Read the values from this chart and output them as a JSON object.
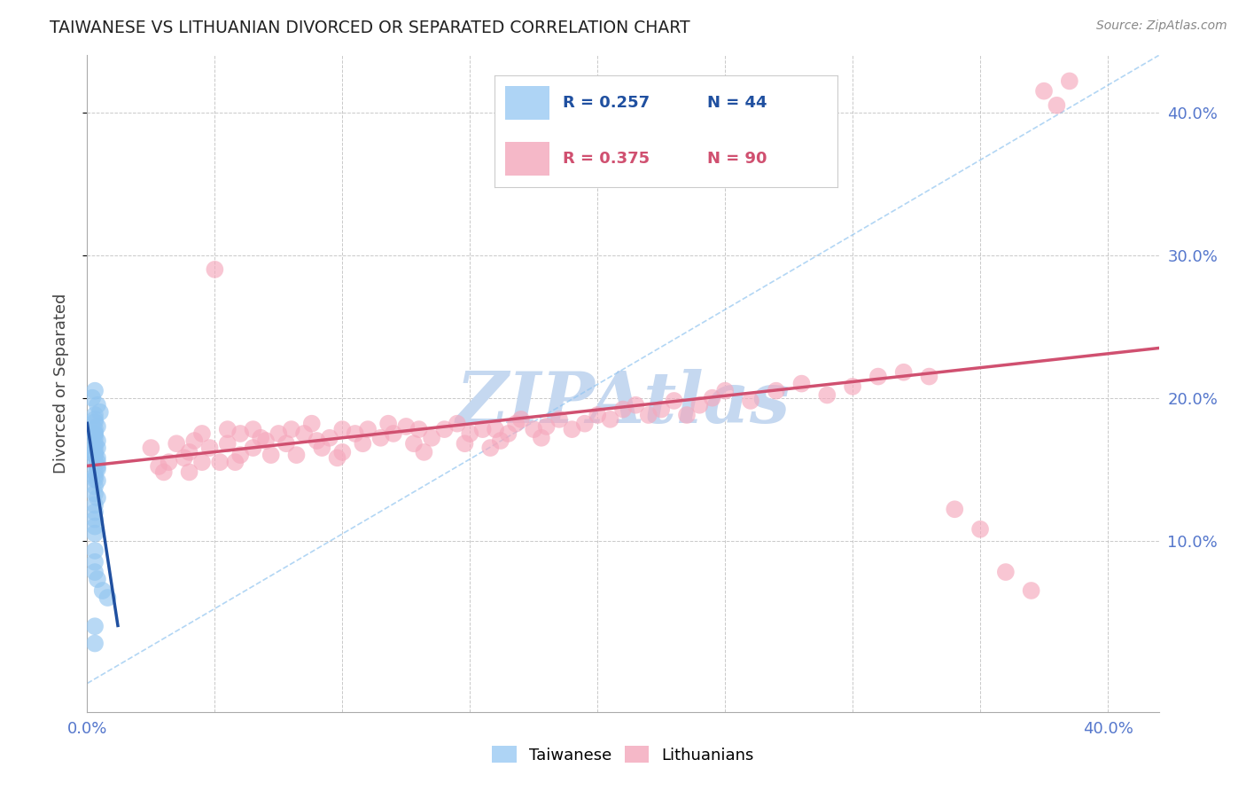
{
  "title": "TAIWANESE VS LITHUANIAN DIVORCED OR SEPARATED CORRELATION CHART",
  "source": "Source: ZipAtlas.com",
  "ylabel": "Divorced or Separated",
  "xlim": [
    0.0,
    0.42
  ],
  "ylim": [
    -0.02,
    0.44
  ],
  "x_ticks": [
    0.0,
    0.05,
    0.1,
    0.15,
    0.2,
    0.25,
    0.3,
    0.35,
    0.4
  ],
  "y_ticks": [
    0.1,
    0.2,
    0.3,
    0.4
  ],
  "legend_r1": "0.257",
  "legend_n1": "44",
  "legend_r2": "0.375",
  "legend_n2": "90",
  "legend_label1": "Taiwanese",
  "legend_label2": "Lithuanians",
  "blue_scatter_color": "#92C5F0",
  "pink_scatter_color": "#F5A8BC",
  "blue_line_color": "#2050A0",
  "pink_line_color": "#D05070",
  "blue_dash_color": "#92C5F0",
  "watermark": "ZIPAtlas",
  "watermark_color": "#C5D8F0",
  "background_color": "#FFFFFF",
  "grid_color": "#BBBBBB",
  "title_color": "#222222",
  "source_color": "#888888",
  "tick_color": "#5577CC",
  "tw_x": [
    0.002,
    0.003,
    0.003,
    0.004,
    0.004,
    0.005,
    0.003,
    0.004,
    0.003,
    0.004,
    0.003,
    0.003,
    0.004,
    0.003,
    0.004,
    0.003,
    0.003,
    0.003,
    0.003,
    0.003,
    0.003,
    0.003,
    0.003,
    0.004,
    0.004,
    0.003,
    0.003,
    0.004,
    0.003,
    0.003,
    0.004,
    0.003,
    0.003,
    0.003,
    0.003,
    0.003,
    0.003,
    0.003,
    0.003,
    0.004,
    0.006,
    0.008,
    0.003,
    0.003
  ],
  "tw_y": [
    0.2,
    0.205,
    0.185,
    0.195,
    0.18,
    0.19,
    0.175,
    0.17,
    0.168,
    0.165,
    0.16,
    0.162,
    0.158,
    0.155,
    0.152,
    0.175,
    0.178,
    0.183,
    0.188,
    0.172,
    0.148,
    0.145,
    0.143,
    0.15,
    0.155,
    0.16,
    0.165,
    0.142,
    0.138,
    0.133,
    0.13,
    0.125,
    0.12,
    0.115,
    0.11,
    0.105,
    0.093,
    0.085,
    0.078,
    0.073,
    0.065,
    0.06,
    0.04,
    0.028
  ],
  "lt_x": [
    0.025,
    0.028,
    0.03,
    0.032,
    0.035,
    0.038,
    0.04,
    0.04,
    0.042,
    0.045,
    0.045,
    0.048,
    0.05,
    0.052,
    0.055,
    0.055,
    0.058,
    0.06,
    0.06,
    0.065,
    0.065,
    0.068,
    0.07,
    0.072,
    0.075,
    0.078,
    0.08,
    0.082,
    0.085,
    0.088,
    0.09,
    0.092,
    0.095,
    0.098,
    0.1,
    0.1,
    0.105,
    0.108,
    0.11,
    0.115,
    0.118,
    0.12,
    0.125,
    0.128,
    0.13,
    0.132,
    0.135,
    0.14,
    0.145,
    0.148,
    0.15,
    0.155,
    0.158,
    0.16,
    0.162,
    0.165,
    0.168,
    0.17,
    0.175,
    0.178,
    0.18,
    0.185,
    0.19,
    0.195,
    0.2,
    0.205,
    0.21,
    0.215,
    0.22,
    0.225,
    0.23,
    0.235,
    0.24,
    0.245,
    0.25,
    0.26,
    0.27,
    0.28,
    0.29,
    0.3,
    0.31,
    0.32,
    0.33,
    0.34,
    0.35,
    0.36,
    0.37,
    0.375,
    0.38,
    0.385
  ],
  "lt_y": [
    0.165,
    0.152,
    0.148,
    0.155,
    0.168,
    0.158,
    0.162,
    0.148,
    0.17,
    0.155,
    0.175,
    0.165,
    0.29,
    0.155,
    0.168,
    0.178,
    0.155,
    0.175,
    0.16,
    0.178,
    0.165,
    0.172,
    0.17,
    0.16,
    0.175,
    0.168,
    0.178,
    0.16,
    0.175,
    0.182,
    0.17,
    0.165,
    0.172,
    0.158,
    0.178,
    0.162,
    0.175,
    0.168,
    0.178,
    0.172,
    0.182,
    0.175,
    0.18,
    0.168,
    0.178,
    0.162,
    0.172,
    0.178,
    0.182,
    0.168,
    0.175,
    0.178,
    0.165,
    0.178,
    0.17,
    0.175,
    0.182,
    0.185,
    0.178,
    0.172,
    0.18,
    0.185,
    0.178,
    0.182,
    0.188,
    0.185,
    0.192,
    0.195,
    0.188,
    0.192,
    0.198,
    0.188,
    0.195,
    0.2,
    0.205,
    0.198,
    0.205,
    0.21,
    0.202,
    0.208,
    0.215,
    0.218,
    0.215,
    0.122,
    0.108,
    0.078,
    0.065,
    0.415,
    0.405,
    0.422
  ]
}
